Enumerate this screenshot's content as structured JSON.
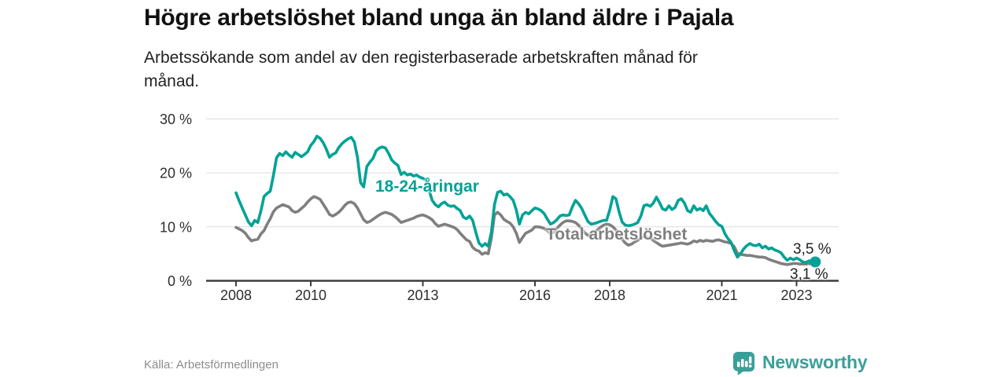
{
  "header": {
    "title": "Högre arbetslöshet bland unga än bland äldre i Pajala",
    "subtitle": "Arbetssökande som andel av den registerbaserade arbetskraften månad för månad."
  },
  "colors": {
    "accent_teal": "#00a296",
    "series_gray": "#7f7f7f",
    "grid": "#dcdcdc",
    "axis": "#3d3d3d",
    "tick_text": "#2e2e2e",
    "value_text": "#222222",
    "source_text": "#8c8c8c",
    "brand_teal": "#3b9f99"
  },
  "chart_data": {
    "type": "line",
    "title": "Högre arbetslöshet bland unga än bland äldre i Pajala",
    "subtitle": "Arbetssökande som andel av den registerbaserade arbetskraften månad för månad.",
    "unit": "%",
    "x_start_year": 2008,
    "x_frequency": "monthly",
    "x_end": "2023-07",
    "x_ticks": [
      2008,
      2010,
      2013,
      2016,
      2018,
      2021,
      2023
    ],
    "x_tick_labels": [
      "2008",
      "2010",
      "2013",
      "2016",
      "2018",
      "2021",
      "2023"
    ],
    "y_ticks": [
      0,
      10,
      20,
      30
    ],
    "y_tick_labels": [
      "0 %",
      "10 %",
      "20 %",
      "30 %"
    ],
    "ylim": [
      0,
      31
    ],
    "grid": "horizontal",
    "legend_position": "inline-labels",
    "series": [
      {
        "name": "18-24-åringar",
        "color": "#00a296",
        "end_label": "3,5 %",
        "end_dot": true,
        "values": [
          16.3,
          14.8,
          13.5,
          12.2,
          10.9,
          10.2,
          11.2,
          10.8,
          13.0,
          15.6,
          16.2,
          16.6,
          19.5,
          22.8,
          23.6,
          23.2,
          23.9,
          23.3,
          22.9,
          23.8,
          23.4,
          23.0,
          23.4,
          23.9,
          25.1,
          25.8,
          26.8,
          26.4,
          25.6,
          24.4,
          22.9,
          23.4,
          23.7,
          24.7,
          25.4,
          25.9,
          26.3,
          26.6,
          25.7,
          22.9,
          18.2,
          17.4,
          21.2,
          22.0,
          22.7,
          24.1,
          24.6,
          24.8,
          24.6,
          23.6,
          22.4,
          21.8,
          21.4,
          19.7,
          20.1,
          19.6,
          19.8,
          19.4,
          19.6,
          19.2,
          19.0,
          18.7,
          16.8,
          14.9,
          14.1,
          13.7,
          14.3,
          14.6,
          14.0,
          13.8,
          13.9,
          13.4,
          13.0,
          11.8,
          11.5,
          12.0,
          11.2,
          9.0,
          7.0,
          6.4,
          6.9,
          6.4,
          9.0,
          14.1,
          16.4,
          16.6,
          15.9,
          16.1,
          15.6,
          14.9,
          13.1,
          10.5,
          12.2,
          12.7,
          12.4,
          13.0,
          13.5,
          13.3,
          13.0,
          12.4,
          11.4,
          10.5,
          10.8,
          11.3,
          12.0,
          12.2,
          12.1,
          12.2,
          13.7,
          14.9,
          14.3,
          13.4,
          12.2,
          11.0,
          10.5,
          10.6,
          10.8,
          11.0,
          11.2,
          11.2,
          13.1,
          15.6,
          15.2,
          12.8,
          10.9,
          10.3,
          10.2,
          10.3,
          10.5,
          10.8,
          12.0,
          13.9,
          14.1,
          13.8,
          14.4,
          15.5,
          14.5,
          13.3,
          13.1,
          13.9,
          13.2,
          13.6,
          14.9,
          15.2,
          14.4,
          13.0,
          12.7,
          13.9,
          13.1,
          13.4,
          13.0,
          13.9,
          12.5,
          11.8,
          11.0,
          10.4,
          10.1,
          8.7,
          7.8,
          7.1,
          5.6,
          4.4,
          5.0,
          5.9,
          6.5,
          6.9,
          6.6,
          6.5,
          6.8,
          6.1,
          6.4,
          5.9,
          6.1,
          5.7,
          5.5,
          5.2,
          4.4,
          3.8,
          4.2,
          3.9,
          4.2,
          3.9,
          3.5,
          3.4,
          3.7,
          3.5,
          3.5
        ]
      },
      {
        "name": "Total arbetslöshet",
        "color": "#7f7f7f",
        "end_label": "3,1 %",
        "end_dot": false,
        "values": [
          9.9,
          9.6,
          9.3,
          8.8,
          8.0,
          7.4,
          7.6,
          7.7,
          8.7,
          9.3,
          10.5,
          11.5,
          12.8,
          13.5,
          13.8,
          14.1,
          13.9,
          13.7,
          13.0,
          12.7,
          12.9,
          13.4,
          13.9,
          14.6,
          15.2,
          15.6,
          15.4,
          15.1,
          14.2,
          13.3,
          12.3,
          12.0,
          12.3,
          12.7,
          13.3,
          14.0,
          14.5,
          14.6,
          14.3,
          13.5,
          12.4,
          11.3,
          10.8,
          11.0,
          11.4,
          11.8,
          12.2,
          12.5,
          12.7,
          12.5,
          12.3,
          11.9,
          11.4,
          10.8,
          11.0,
          11.2,
          11.4,
          11.6,
          11.9,
          12.1,
          12.2,
          12.0,
          11.7,
          11.3,
          10.6,
          10.1,
          10.3,
          10.5,
          10.3,
          10.1,
          9.9,
          9.5,
          8.8,
          8.2,
          7.6,
          7.3,
          6.2,
          5.7,
          5.5,
          4.9,
          5.2,
          5.0,
          7.9,
          12.2,
          12.7,
          12.2,
          11.4,
          11.0,
          10.7,
          10.0,
          8.8,
          7.1,
          8.0,
          8.8,
          9.1,
          9.4,
          10.0,
          10.0,
          9.9,
          9.7,
          9.3,
          8.7,
          9.0,
          9.7,
          10.3,
          10.8,
          11.1,
          11.1,
          11.0,
          10.8,
          10.3,
          9.6,
          8.9,
          8.4,
          8.6,
          8.9,
          9.4,
          9.9,
          10.3,
          10.5,
          10.4,
          10.0,
          9.4,
          8.5,
          7.7,
          7.0,
          6.6,
          6.8,
          7.2,
          7.5,
          7.9,
          8.2,
          8.1,
          7.9,
          7.5,
          7.1,
          6.7,
          6.4,
          6.5,
          6.6,
          6.7,
          6.8,
          6.9,
          7.0,
          6.9,
          6.8,
          7.0,
          7.4,
          7.2,
          7.5,
          7.3,
          7.5,
          7.4,
          7.3,
          7.5,
          7.6,
          7.4,
          7.2,
          7.1,
          6.9,
          6.3,
          5.1,
          4.9,
          4.8,
          4.7,
          4.7,
          4.6,
          4.5,
          4.4,
          4.4,
          4.3,
          4.0,
          3.8,
          3.6,
          3.4,
          3.2,
          3.1,
          3.0,
          3.1,
          3.2,
          3.2,
          3.1,
          3.1,
          3.1,
          3.2,
          3.1,
          3.1
        ]
      }
    ]
  },
  "footer": {
    "source": "Källa: Arbetsförmedlingen",
    "brand": "Newsworthy"
  }
}
